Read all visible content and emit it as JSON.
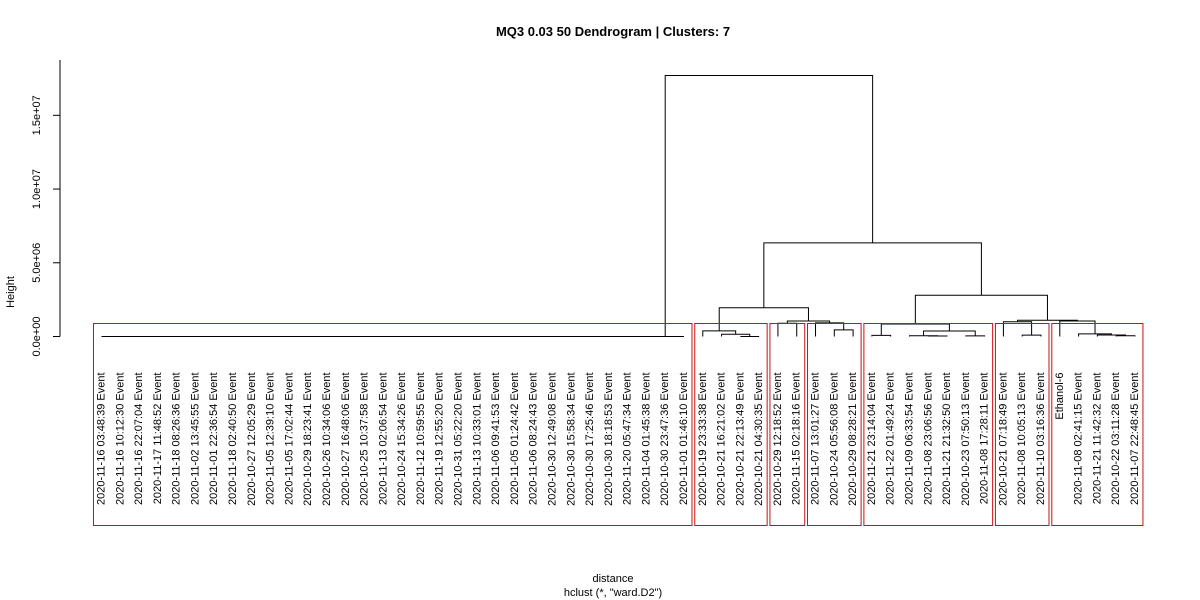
{
  "chart_data": {
    "type": "dendrogram",
    "title": "MQ3 0.03 50 Dendrogram | Clusters: 7",
    "ylabel": "Height",
    "xlabel": "distance",
    "sublabel": "hclust (*, \"ward.D2\")",
    "ylim": [
      0,
      18000000
    ],
    "yticks": [
      {
        "value": 0,
        "label": "0.0e+00"
      },
      {
        "value": 5000000,
        "label": "5.0e+06"
      },
      {
        "value": 10000000,
        "label": "1.0e+07"
      },
      {
        "value": 15000000,
        "label": "1.5e+07"
      }
    ],
    "leaves": [
      "2020-11-16 03:48:39 Event",
      "2020-11-16 10:12:30 Event",
      "2020-11-16 22:07:04 Event",
      "2020-11-17 11:48:52 Event",
      "2020-11-18 08:26:36 Event",
      "2020-11-02 13:45:55 Event",
      "2020-11-01 22:36:54 Event",
      "2020-11-18 02:40:50 Event",
      "2020-10-27 12:05:29 Event",
      "2020-11-05 12:39:10 Event",
      "2020-11-05 17:02:44 Event",
      "2020-10-29 18:23:41 Event",
      "2020-10-26 10:34:06 Event",
      "2020-10-27 16:48:06 Event",
      "2020-10-25 10:37:58 Event",
      "2020-11-13 02:06:54 Event",
      "2020-10-24 15:34:26 Event",
      "2020-11-12 10:59:55 Event",
      "2020-11-19 12:55:20 Event",
      "2020-10-31 05:22:20 Event",
      "2020-11-13 10:33:01 Event",
      "2020-11-06 09:41:53 Event",
      "2020-11-05 01:24:42 Event",
      "2020-11-06 08:24:43 Event",
      "2020-10-30 12:49:08 Event",
      "2020-10-30 15:58:34 Event",
      "2020-10-30 17:25:46 Event",
      "2020-10-30 18:18:53 Event",
      "2020-11-20 05:47:34 Event",
      "2020-11-04 01:45:38 Event",
      "2020-10-30 23:47:36 Event",
      "2020-11-01 01:46:10 Event",
      "2020-10-19 23:33:38 Event",
      "2020-10-21 16:21:02 Event",
      "2020-10-21 22:13:49 Event",
      "2020-10-21 04:30:35 Event",
      "2020-10-29 12:18:52 Event",
      "2020-11-15 02:18:16 Event",
      "2020-11-07 13:01:27 Event",
      "2020-10-24 05:56:08 Event",
      "2020-10-29 08:28:21 Event",
      "2020-11-21 23:14:04 Event",
      "2020-11-22 01:49:24 Event",
      "2020-11-09 06:33:54 Event",
      "2020-11-08 23:06:56 Event",
      "2020-11-21 21:32:50 Event",
      "2020-10-23 07:50:13 Event",
      "2020-11-08 17:28:11 Event",
      "2020-10-21 07:18:49 Event",
      "2020-11-08 10:05:13 Event",
      "2020-11-10 03:16:36 Event",
      "Ethanol-6",
      "2020-11-08 02:41:15 Event",
      "2020-11-21 11:42:32 Event",
      "2020-10-22 03:11:28 Event",
      "2020-11-07 22:48:45 Event"
    ],
    "clusters": [
      {
        "first": 0,
        "last": 31
      },
      {
        "first": 32,
        "last": 35
      },
      {
        "first": 36,
        "last": 37
      },
      {
        "first": 38,
        "last": 40
      },
      {
        "first": 41,
        "last": 47
      },
      {
        "first": 48,
        "last": 50
      },
      {
        "first": 51,
        "last": 55
      }
    ],
    "merges": [
      {
        "a": "L0",
        "b": "L1",
        "h": 0
      },
      {
        "a": "M1",
        "b": "L2",
        "h": 0
      },
      {
        "a": "M2",
        "b": "L3",
        "h": 0
      },
      {
        "a": "M3",
        "b": "L4",
        "h": 0
      },
      {
        "a": "M4",
        "b": "L5",
        "h": 0
      },
      {
        "a": "M5",
        "b": "L6",
        "h": 0
      },
      {
        "a": "M6",
        "b": "L7",
        "h": 0
      },
      {
        "a": "M7",
        "b": "L8",
        "h": 0
      },
      {
        "a": "M8",
        "b": "L9",
        "h": 0
      },
      {
        "a": "M9",
        "b": "L10",
        "h": 0
      },
      {
        "a": "M10",
        "b": "L11",
        "h": 0
      },
      {
        "a": "M11",
        "b": "L12",
        "h": 0
      },
      {
        "a": "M12",
        "b": "L13",
        "h": 0
      },
      {
        "a": "M13",
        "b": "L14",
        "h": 0
      },
      {
        "a": "M14",
        "b": "L15",
        "h": 0
      },
      {
        "a": "M15",
        "b": "L16",
        "h": 0
      },
      {
        "a": "M16",
        "b": "L17",
        "h": 0
      },
      {
        "a": "M17",
        "b": "L18",
        "h": 0
      },
      {
        "a": "M18",
        "b": "L19",
        "h": 0
      },
      {
        "a": "M19",
        "b": "L20",
        "h": 0
      },
      {
        "a": "M20",
        "b": "L21",
        "h": 0
      },
      {
        "a": "M21",
        "b": "L22",
        "h": 0
      },
      {
        "a": "M22",
        "b": "L23",
        "h": 0
      },
      {
        "a": "M23",
        "b": "L24",
        "h": 0
      },
      {
        "a": "M24",
        "b": "L25",
        "h": 0
      },
      {
        "a": "M25",
        "b": "L26",
        "h": 0
      },
      {
        "a": "M26",
        "b": "L27",
        "h": 0
      },
      {
        "a": "M27",
        "b": "L28",
        "h": 0
      },
      {
        "a": "M28",
        "b": "L29",
        "h": 0
      },
      {
        "a": "M29",
        "b": "L30",
        "h": 0
      },
      {
        "a": "M30",
        "b": "L31",
        "h": 0
      },
      {
        "a": "L34",
        "b": "L35",
        "h": 0
      },
      {
        "a": "L33",
        "b": "M32",
        "h": 150000
      },
      {
        "a": "L32",
        "b": "M33",
        "h": 380000
      },
      {
        "a": "L36",
        "b": "L37",
        "h": 900000
      },
      {
        "a": "L39",
        "b": "L40",
        "h": 450000
      },
      {
        "a": "L38",
        "b": "M36",
        "h": 920000
      },
      {
        "a": "M35",
        "b": "M37",
        "h": 1050000
      },
      {
        "a": "M34",
        "b": "M38",
        "h": 1950000
      },
      {
        "a": "L44",
        "b": "L45",
        "h": 30000
      },
      {
        "a": "L43",
        "b": "M40",
        "h": 50000
      },
      {
        "a": "L46",
        "b": "L47",
        "h": 40000
      },
      {
        "a": "M41",
        "b": "M42",
        "h": 370000
      },
      {
        "a": "L41",
        "b": "L42",
        "h": 80000
      },
      {
        "a": "M44",
        "b": "M43",
        "h": 850000
      },
      {
        "a": "L49",
        "b": "L50",
        "h": 90000
      },
      {
        "a": "L48",
        "b": "M46",
        "h": 1000000
      },
      {
        "a": "L54",
        "b": "L55",
        "h": 50000
      },
      {
        "a": "L53",
        "b": "M48",
        "h": 100000
      },
      {
        "a": "L52",
        "b": "M49",
        "h": 180000
      },
      {
        "a": "L51",
        "b": "M50",
        "h": 1050000
      },
      {
        "a": "M47",
        "b": "M51",
        "h": 1100000
      },
      {
        "a": "M45",
        "b": "M52",
        "h": 2800000
      },
      {
        "a": "M39",
        "b": "M53",
        "h": 6350000
      },
      {
        "a": "M31",
        "b": "M54",
        "h": 17700000
      }
    ]
  },
  "colors": {
    "dendrogram_line": "#000000",
    "cluster_rect": "#cc1111",
    "background": "#ffffff"
  }
}
